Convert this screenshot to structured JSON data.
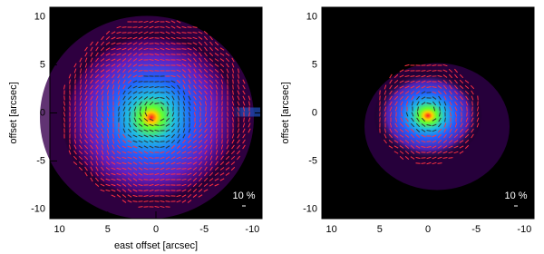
{
  "chart_data": [
    {
      "type": "image",
      "xlabel": "east offset [arcsec]",
      "ylabel": "offset [arcsec]",
      "xlim": [
        11,
        -11
      ],
      "ylim": [
        -11,
        11
      ],
      "xticks": [
        10,
        5,
        0,
        -5,
        -10
      ],
      "yticks": [
        -10,
        -5,
        0,
        5,
        10
      ],
      "annotation": "10 %"
    },
    {
      "type": "image",
      "ylabel": "offset [arcsec]",
      "xlim": [
        11,
        -11
      ],
      "ylim": [
        -11,
        11
      ],
      "xticks": [
        10,
        5,
        0,
        -5,
        -10
      ],
      "yticks": [
        -10,
        -5,
        0,
        5,
        10
      ],
      "annotation": "10 %"
    }
  ]
}
